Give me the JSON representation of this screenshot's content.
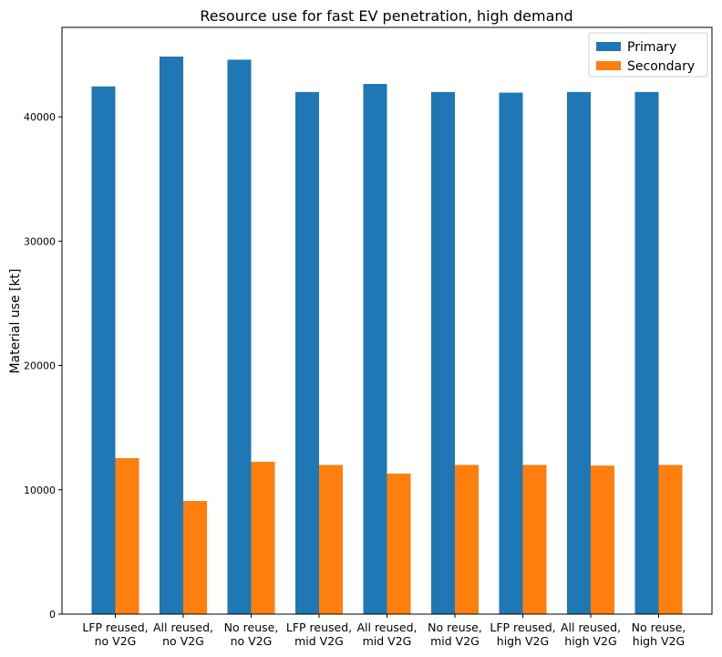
{
  "chart_data": {
    "type": "bar",
    "title": "Resource use for fast EV penetration, high demand",
    "xlabel": "",
    "ylabel": "Material use [kt]",
    "ylim": [
      0,
      47200
    ],
    "yticks": [
      0,
      10000,
      20000,
      30000,
      40000
    ],
    "grid": false,
    "legend_position": "top-right",
    "categories": [
      [
        "LFP reused,",
        "no V2G"
      ],
      [
        "All reused,",
        "no V2G"
      ],
      [
        "No reuse,",
        "no V2G"
      ],
      [
        "LFP reused,",
        "mid V2G"
      ],
      [
        "All reused,",
        "mid V2G"
      ],
      [
        "No reuse,",
        "mid V2G"
      ],
      [
        "LFP reused,",
        "high V2G"
      ],
      [
        "All reused,",
        "high V2G"
      ],
      [
        "No reuse,",
        "high V2G"
      ]
    ],
    "series": [
      {
        "name": "Primary",
        "color": "#1f77b4",
        "values": [
          42450,
          44850,
          44600,
          42000,
          42650,
          42000,
          41950,
          42000,
          42000
        ]
      },
      {
        "name": "Secondary",
        "color": "#ff7f0e",
        "values": [
          12550,
          9100,
          12250,
          12000,
          11300,
          12000,
          12000,
          11950,
          12000
        ]
      }
    ]
  }
}
